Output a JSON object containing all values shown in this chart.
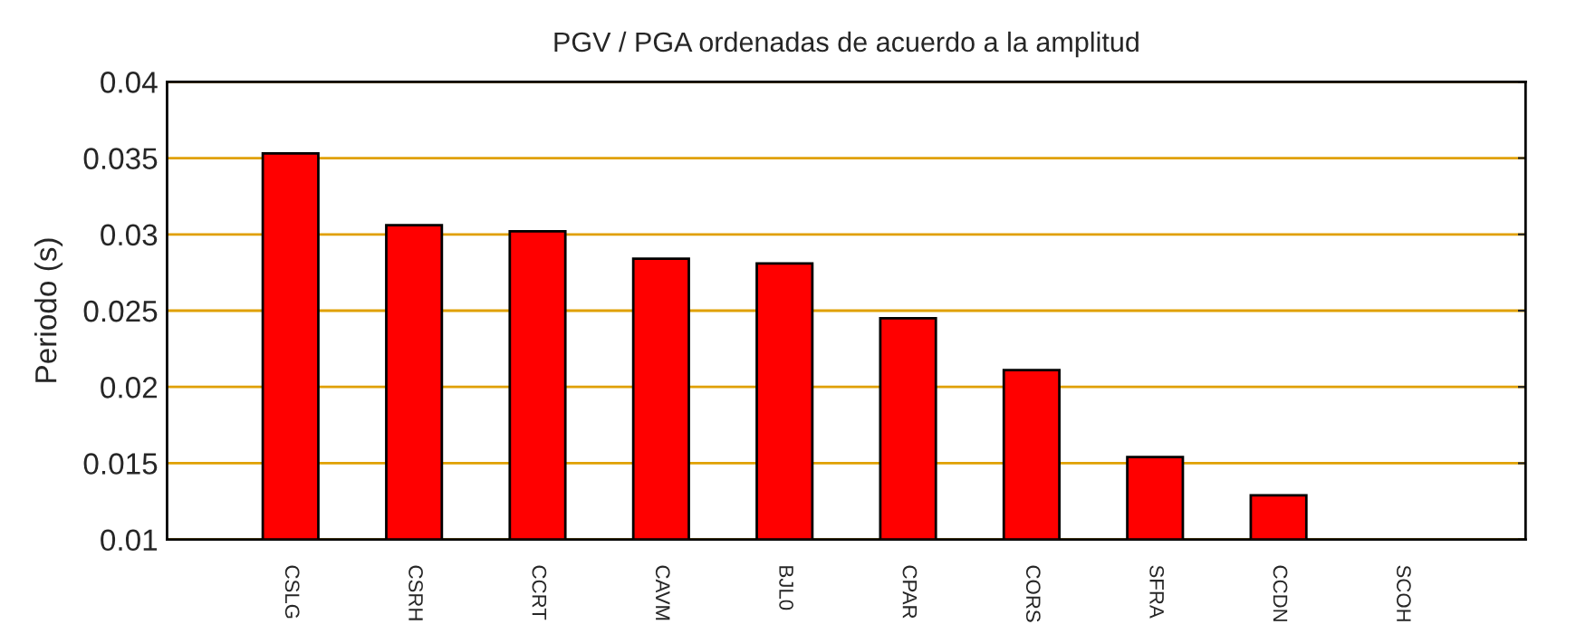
{
  "chart_data": {
    "type": "bar",
    "title": "PGV / PGA ordenadas de acuerdo a la amplitud",
    "ylabel": "Periodo (s)",
    "categories": [
      "CSLG",
      "CSRH",
      "CCRT",
      "CAVM",
      "BJL0",
      "CPAR",
      "CORS",
      "SFRA",
      "CCDN",
      "SCOH"
    ],
    "values": [
      0.0353,
      0.0306,
      0.0302,
      0.0284,
      0.0281,
      0.0245,
      0.0211,
      0.0154,
      0.0129,
      null
    ],
    "color": "#ff0000",
    "ylim": [
      0.01,
      0.04
    ],
    "yticks": [
      0.01,
      0.015,
      0.02,
      0.025,
      0.03,
      0.035,
      0.04
    ],
    "grid": "y"
  }
}
